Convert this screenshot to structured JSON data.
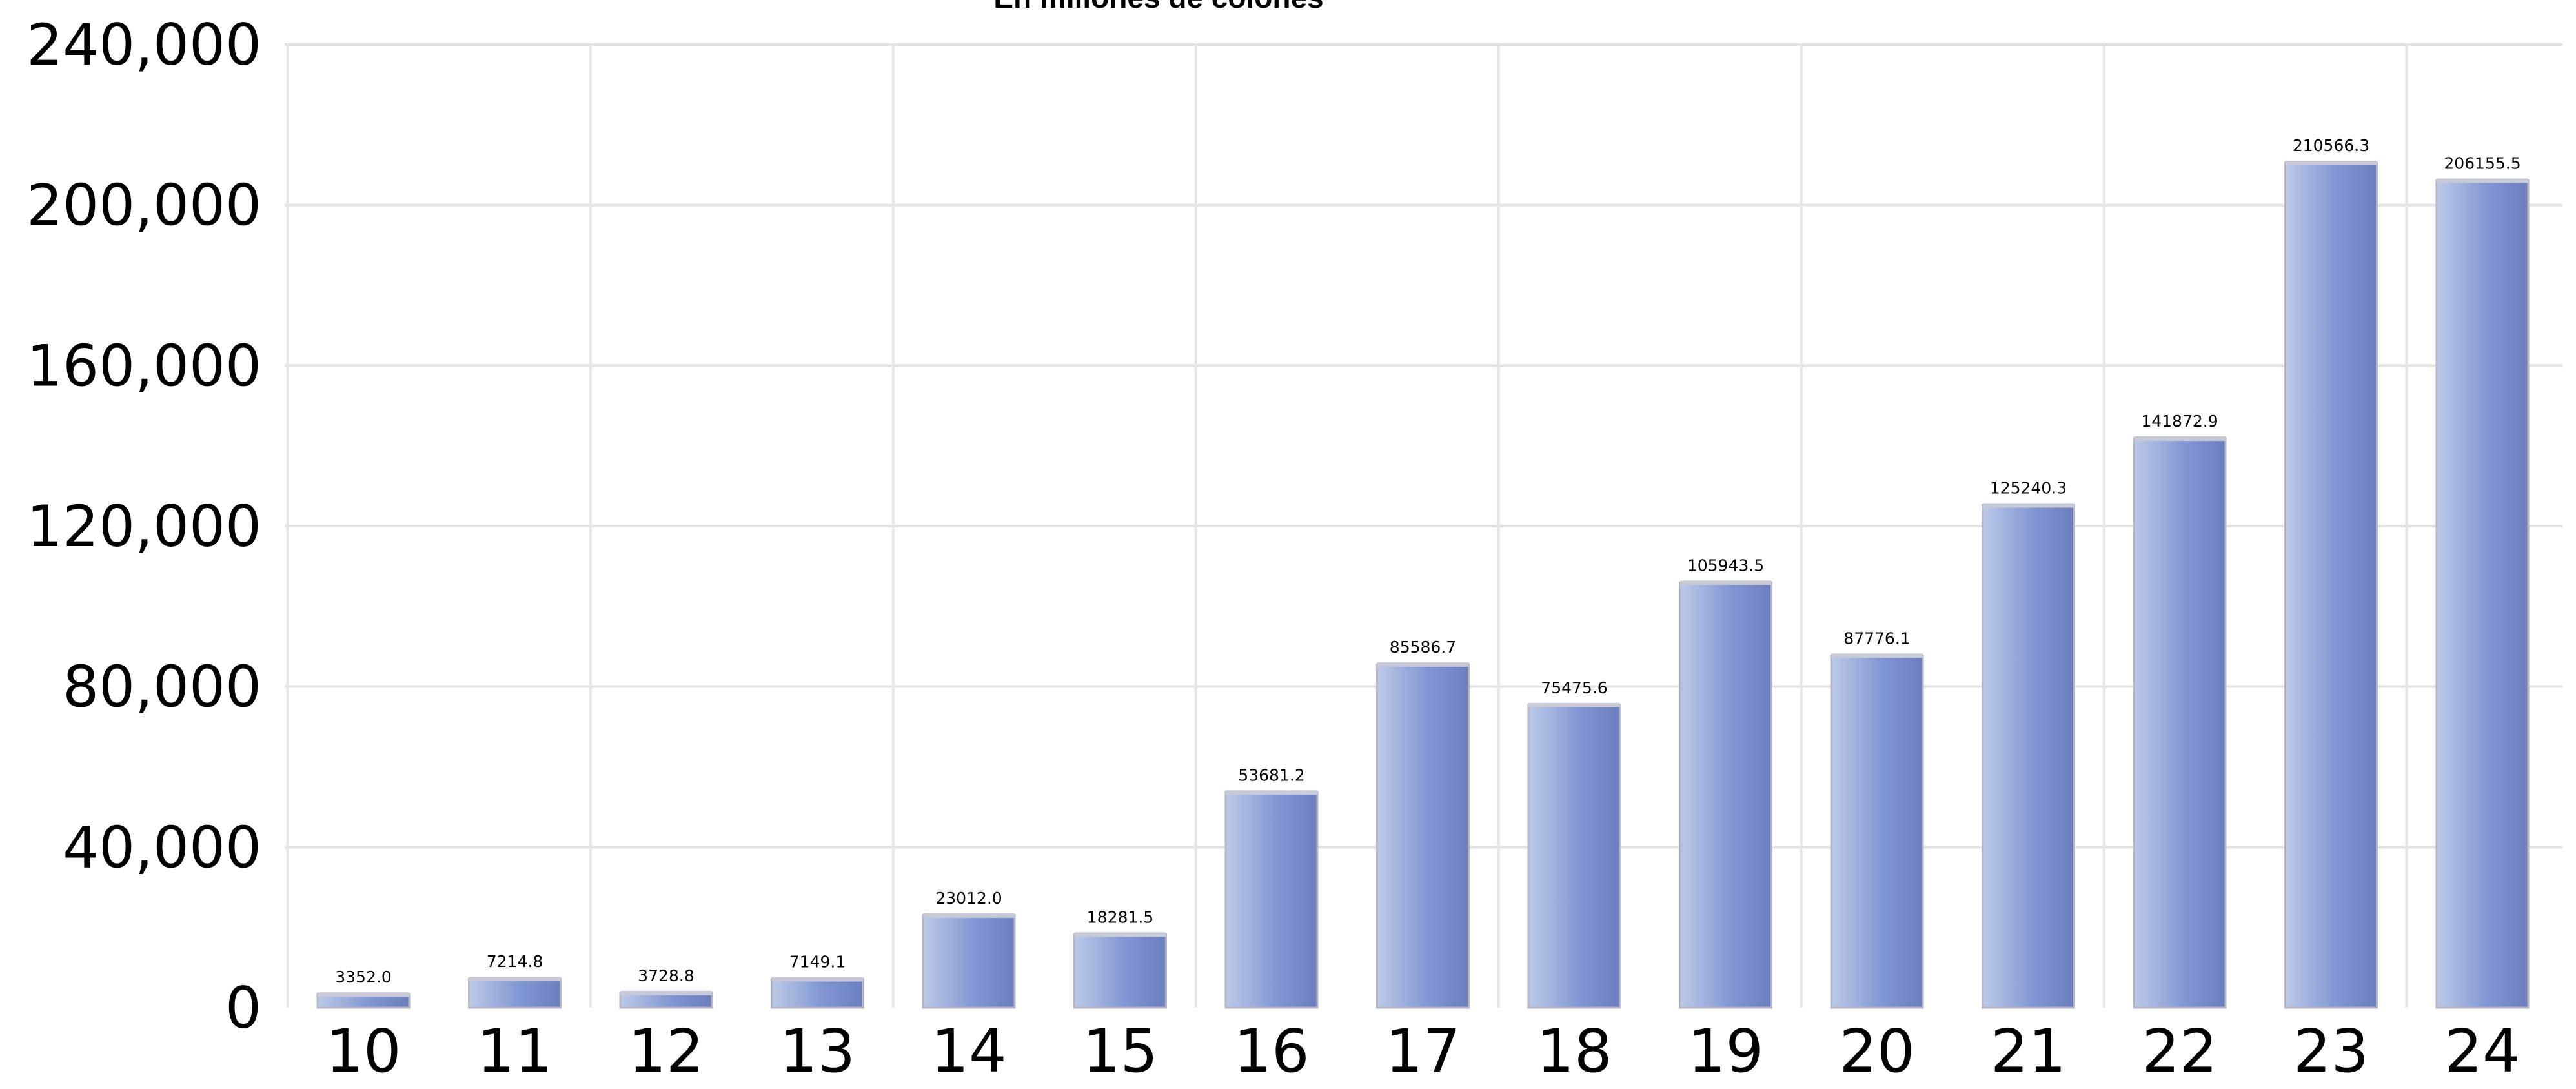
{
  "chart_data": {
    "type": "bar",
    "title": "En millones de colones",
    "categories": [
      "10",
      "11",
      "12",
      "13",
      "14",
      "15",
      "16",
      "17",
      "18",
      "19",
      "20",
      "21",
      "22",
      "23",
      "24"
    ],
    "values": [
      3352.0,
      7214.8,
      3728.8,
      7149.1,
      23012.0,
      18281.5,
      53681.2,
      85586.7,
      75475.6,
      105943.5,
      87776.1,
      125240.3,
      141872.9,
      210566.3,
      206155.5
    ],
    "data_labels": [
      "3352.0",
      "7214.8",
      "3728.8",
      "7149.1",
      "23012.0",
      "18281.5",
      "53681.2",
      "85586.7",
      "75475.6",
      "105943.5",
      "87776.1",
      "125240.3",
      "141872.9",
      "210566.3",
      "206155.5"
    ],
    "y_ticks": [
      0,
      40000,
      80000,
      120000,
      160000,
      200000,
      240000
    ],
    "y_tick_labels": [
      "0",
      "40,000",
      "80,000",
      "120,000",
      "160,000",
      "200,000",
      "240,000"
    ],
    "ylim": [
      0,
      240000
    ],
    "xlabel": "",
    "ylabel": "",
    "grid": true,
    "legend": "none",
    "colors": {
      "bar_light": "#b9c7e6",
      "bar_mid": "#8197d3",
      "bar_dark": "#6e80bf",
      "bar_border": "#b4b6c4",
      "grid": "#e3e3e3"
    }
  }
}
